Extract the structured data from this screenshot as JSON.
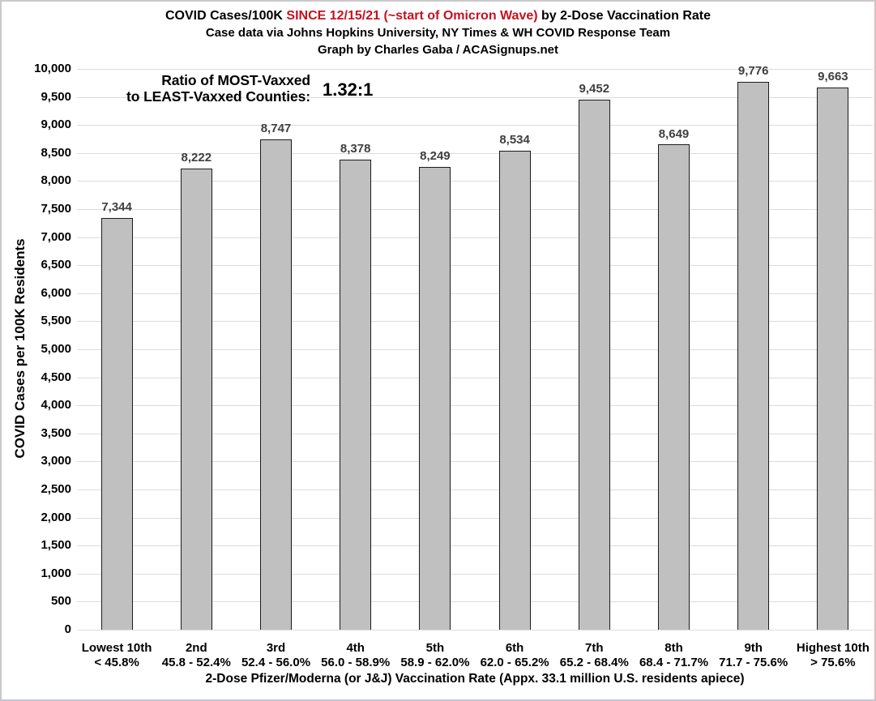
{
  "title": {
    "line1_prefix": "COVID Cases/100K",
    "line1_highlight": " SINCE 12/15/21 (~start of Omicron Wave) ",
    "line1_suffix": "by 2-Dose Vaccination Rate",
    "line2": "Case data via Johns Hopkins University, NY Times & WH COVID Response Team",
    "line3": "Graph by Charles Gaba / ACASignups.net",
    "highlight_color": "#c5121f"
  },
  "annotation": {
    "label_line1": "Ratio of MOST-Vaxxed",
    "label_line2": "to LEAST-Vaxxed Counties:",
    "value": "1.32:1"
  },
  "chart_data": {
    "type": "bar",
    "title": "COVID Cases/100K SINCE 12/15/21 (~start of Omicron Wave) by 2-Dose Vaccination Rate",
    "subtitle": "Case data via Johns Hopkins University, NY Times & WH COVID Response Team",
    "credit": "Graph by Charles Gaba / ACASignups.net",
    "categories": [
      "Lowest 10th",
      "2nd",
      "3rd",
      "4th",
      "5th",
      "6th",
      "7th",
      "8th",
      "9th",
      "Highest 10th"
    ],
    "category_sublabels": [
      "< 45.8%",
      "45.8 - 52.4%",
      "52.4 - 56.0%",
      "56.0 - 58.9%",
      "58.9 - 62.0%",
      "62.0 - 65.2%",
      "65.2 - 68.4%",
      "68.4 - 71.7%",
      "71.7 - 75.6%",
      "> 75.6%"
    ],
    "values": [
      7344,
      8222,
      8747,
      8378,
      8249,
      8534,
      9452,
      8649,
      9776,
      9663
    ],
    "value_labels": [
      "7,344",
      "8,222",
      "8,747",
      "8,378",
      "8,249",
      "8,534",
      "9,452",
      "8,649",
      "9,776",
      "9,663"
    ],
    "xlabel": "2-Dose Pfizer/Moderna (or  J&J) Vaccination Rate (Appx. 33.1 million U.S. residents apiece)",
    "ylabel": "COVID Cases per 100K Residents",
    "ylim": [
      0,
      10000
    ],
    "ytick_step": 500,
    "grid": true,
    "legend": "none",
    "bar_fill": "#c0c0c0",
    "bar_border": "#1b1b1b",
    "gridline_color": "#dcdcdc",
    "value_label_color": "#3f3f3f"
  }
}
